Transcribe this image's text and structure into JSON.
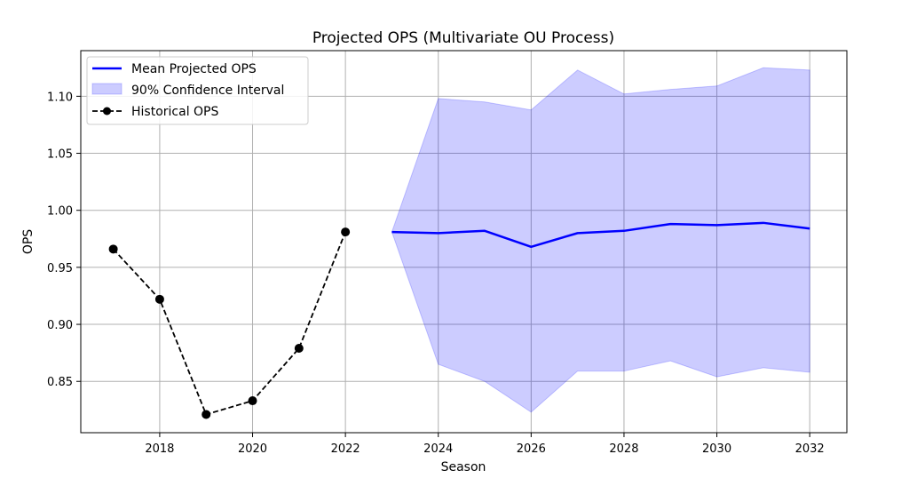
{
  "chart_data": {
    "type": "line",
    "title": "Projected OPS (Multivariate OU Process)",
    "xlabel": "Season",
    "ylabel": "OPS",
    "xlim": [
      2016.3,
      2032.8
    ],
    "ylim": [
      0.805,
      1.14
    ],
    "xticks": [
      2018,
      2020,
      2022,
      2024,
      2026,
      2028,
      2030,
      2032
    ],
    "yticks": [
      0.85,
      0.9,
      0.95,
      1.0,
      1.05,
      1.1
    ],
    "grid": true,
    "legend_position": "top-left",
    "series": [
      {
        "name": "Mean Projected OPS",
        "style": "solid-line",
        "color": "#0000ff",
        "x": [
          2023,
          2024,
          2025,
          2026,
          2027,
          2028,
          2029,
          2030,
          2031,
          2032
        ],
        "y": [
          0.981,
          0.98,
          0.982,
          0.968,
          0.98,
          0.982,
          0.988,
          0.987,
          0.989,
          0.984
        ]
      },
      {
        "name": "90% Confidence Interval",
        "style": "band",
        "color": "#0000ff",
        "x": [
          2023,
          2024,
          2025,
          2026,
          2027,
          2028,
          2029,
          2030,
          2031,
          2032
        ],
        "lower": [
          0.981,
          0.865,
          0.85,
          0.823,
          0.859,
          0.859,
          0.868,
          0.854,
          0.862,
          0.858
        ],
        "upper": [
          0.981,
          1.098,
          1.095,
          1.088,
          1.123,
          1.102,
          1.106,
          1.109,
          1.125,
          1.123
        ]
      },
      {
        "name": "Historical OPS",
        "style": "dashed-line-markers",
        "color": "#000000",
        "x": [
          2017,
          2018,
          2019,
          2020,
          2021,
          2022
        ],
        "y": [
          0.966,
          0.922,
          0.821,
          0.833,
          0.879,
          0.981
        ]
      }
    ]
  }
}
